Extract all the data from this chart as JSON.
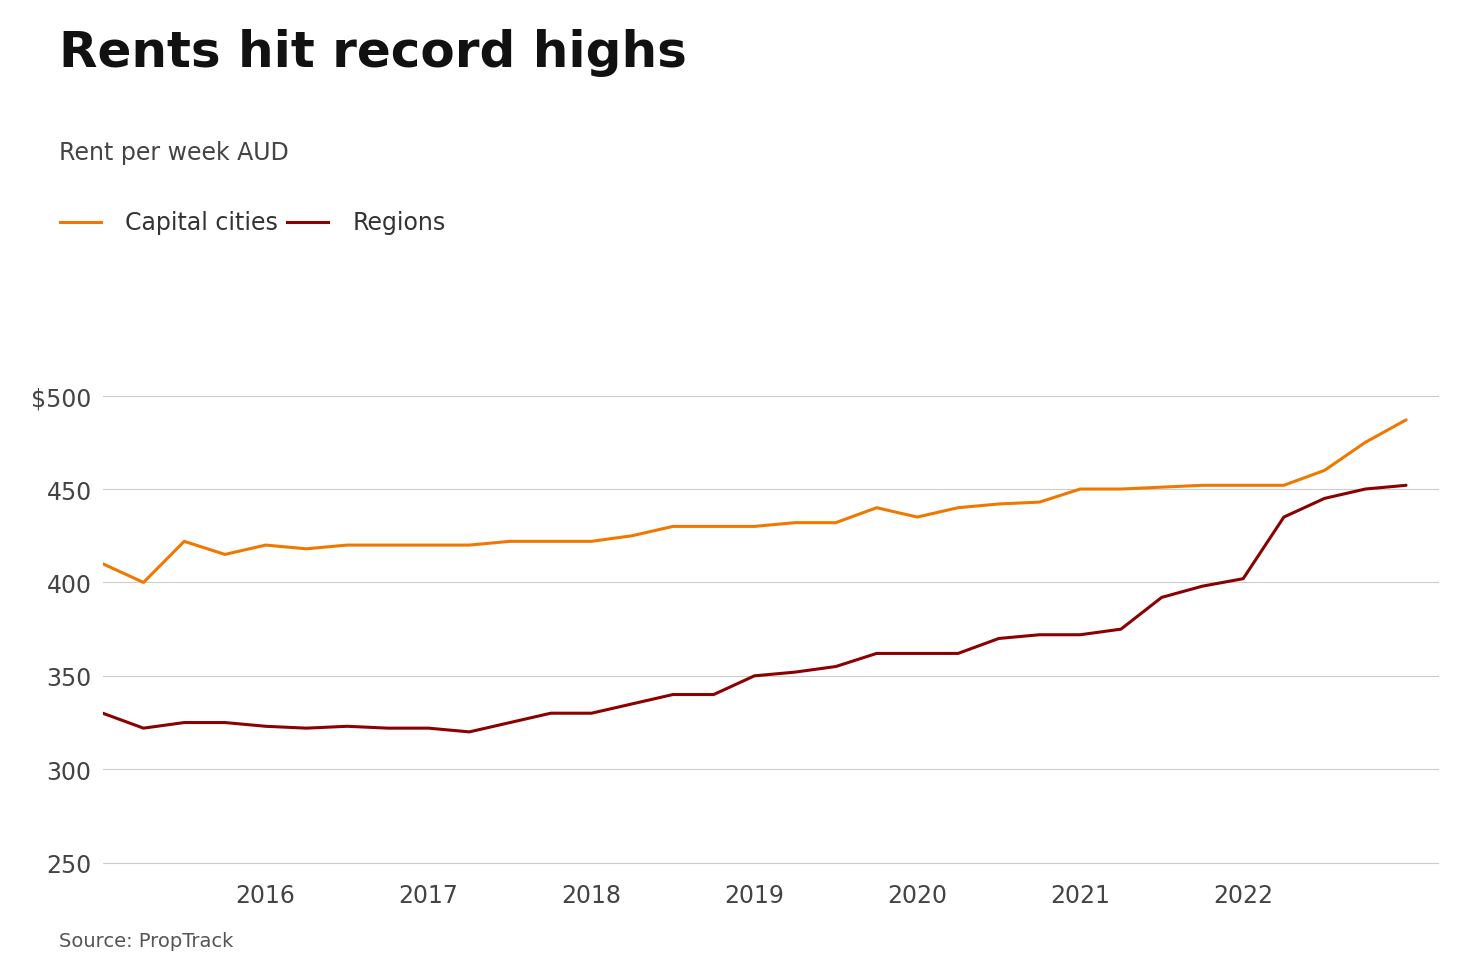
{
  "title": "Rents hit record highs",
  "subtitle": "Rent per week AUD",
  "source": "Source: PropTrack",
  "capital_cities_color": "#F07800",
  "regions_color": "#8B0000",
  "background_color": "#FFFFFF",
  "ylim": [
    245,
    515
  ],
  "yticks": [
    250,
    300,
    350,
    400,
    450,
    500
  ],
  "ytick_labels": [
    "250",
    "300",
    "350",
    "400",
    "450",
    "$500"
  ],
  "capital_cities": {
    "label": "Capital cities",
    "x": [
      2015.0,
      2015.25,
      2015.5,
      2015.75,
      2016.0,
      2016.25,
      2016.5,
      2016.75,
      2017.0,
      2017.25,
      2017.5,
      2017.75,
      2018.0,
      2018.25,
      2018.5,
      2018.75,
      2019.0,
      2019.25,
      2019.5,
      2019.75,
      2020.0,
      2020.25,
      2020.5,
      2020.75,
      2021.0,
      2021.25,
      2021.5,
      2021.75,
      2022.0,
      2022.25,
      2022.5,
      2022.75,
      2023.0
    ],
    "y": [
      410,
      400,
      422,
      415,
      420,
      418,
      420,
      420,
      420,
      420,
      422,
      422,
      422,
      425,
      430,
      430,
      430,
      432,
      432,
      440,
      435,
      440,
      442,
      443,
      450,
      450,
      451,
      452,
      452,
      452,
      460,
      475,
      487
    ]
  },
  "regions": {
    "label": "Regions",
    "x": [
      2015.0,
      2015.25,
      2015.5,
      2015.75,
      2016.0,
      2016.25,
      2016.5,
      2016.75,
      2017.0,
      2017.25,
      2017.5,
      2017.75,
      2018.0,
      2018.25,
      2018.5,
      2018.75,
      2019.0,
      2019.25,
      2019.5,
      2019.75,
      2020.0,
      2020.25,
      2020.5,
      2020.75,
      2021.0,
      2021.25,
      2021.5,
      2021.75,
      2022.0,
      2022.25,
      2022.5,
      2022.75,
      2023.0
    ],
    "y": [
      330,
      322,
      325,
      325,
      323,
      322,
      323,
      322,
      322,
      320,
      325,
      330,
      330,
      335,
      340,
      340,
      350,
      352,
      355,
      362,
      362,
      362,
      370,
      372,
      372,
      375,
      392,
      398,
      402,
      435,
      445,
      450,
      452
    ]
  },
  "xticks": [
    2016,
    2017,
    2018,
    2019,
    2020,
    2021,
    2022
  ],
  "line_width": 2.2,
  "title_fontsize": 36,
  "subtitle_fontsize": 17,
  "tick_fontsize": 17,
  "legend_fontsize": 17,
  "source_fontsize": 14
}
